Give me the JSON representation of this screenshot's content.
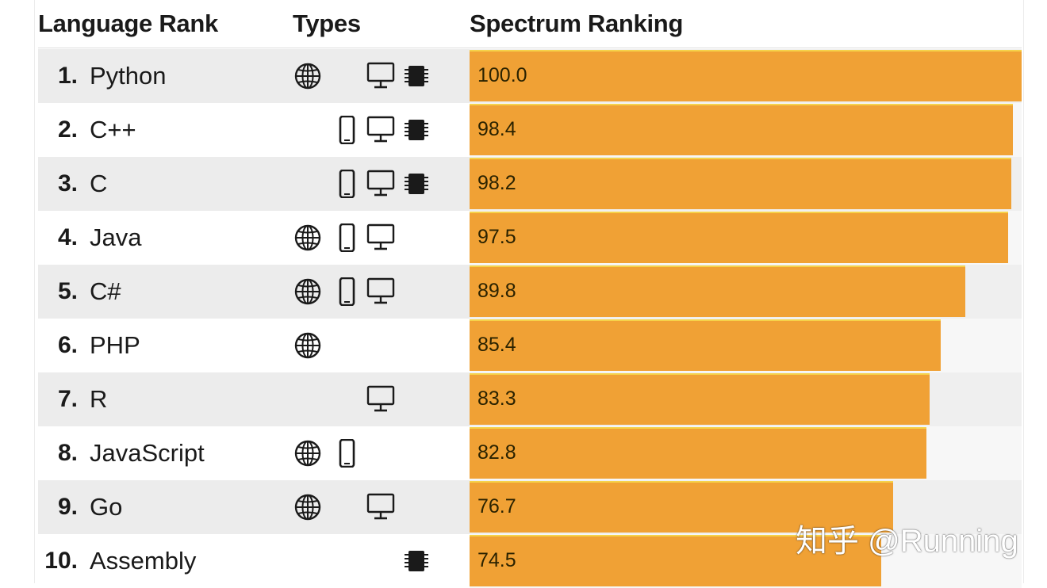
{
  "header": {
    "language_rank": "Language Rank",
    "types": "Types",
    "spectrum_ranking": "Spectrum Ranking"
  },
  "icons": {
    "web": "globe-icon",
    "mobile": "mobile-phone-icon",
    "desktop": "desktop-monitor-icon",
    "embedded": "chip-icon"
  },
  "colors": {
    "bar": "#f0a135",
    "bar_top": "#f6d24a",
    "row_shade": "#ececec"
  },
  "chart_data": {
    "type": "bar",
    "orientation": "horizontal",
    "title": "Spectrum Ranking",
    "xlim": [
      0,
      100
    ],
    "rows": [
      {
        "rank": "1.",
        "language": "Python",
        "types": [
          "web",
          "desktop",
          "embedded"
        ],
        "value": 100.0,
        "label": "100.0"
      },
      {
        "rank": "2.",
        "language": "C++",
        "types": [
          "mobile",
          "desktop",
          "embedded"
        ],
        "value": 98.4,
        "label": "98.4"
      },
      {
        "rank": "3.",
        "language": "C",
        "types": [
          "mobile",
          "desktop",
          "embedded"
        ],
        "value": 98.2,
        "label": "98.2"
      },
      {
        "rank": "4.",
        "language": "Java",
        "types": [
          "web",
          "mobile",
          "desktop"
        ],
        "value": 97.5,
        "label": "97.5"
      },
      {
        "rank": "5.",
        "language": "C#",
        "types": [
          "web",
          "mobile",
          "desktop"
        ],
        "value": 89.8,
        "label": "89.8"
      },
      {
        "rank": "6.",
        "language": "PHP",
        "types": [
          "web"
        ],
        "value": 85.4,
        "label": "85.4"
      },
      {
        "rank": "7.",
        "language": "R",
        "types": [
          "desktop"
        ],
        "value": 83.3,
        "label": "83.3"
      },
      {
        "rank": "8.",
        "language": "JavaScript",
        "types": [
          "web",
          "mobile"
        ],
        "value": 82.8,
        "label": "82.8"
      },
      {
        "rank": "9.",
        "language": "Go",
        "types": [
          "web",
          "desktop"
        ],
        "value": 76.7,
        "label": "76.7"
      },
      {
        "rank": "10.",
        "language": "Assembly",
        "types": [
          "embedded"
        ],
        "value": 74.5,
        "label": "74.5"
      }
    ]
  },
  "watermark": "知乎 @Running"
}
